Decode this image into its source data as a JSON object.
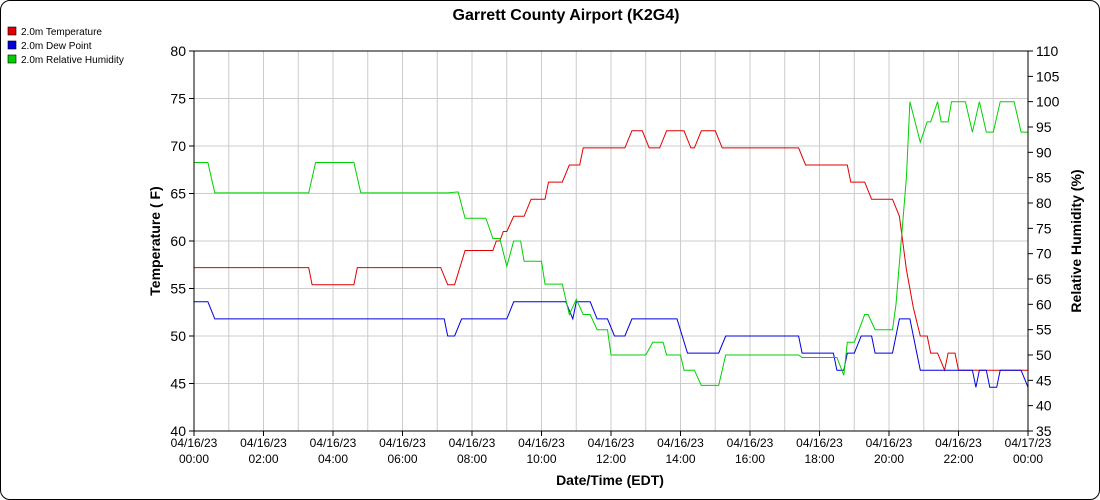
{
  "chart_data": {
    "type": "line",
    "title": "Garrett County Airport (K2G4)",
    "xlabel": "Date/Time (EDT)",
    "ylabel_left": "Temperature ( F)",
    "ylabel_right": "Relative Humidity (%)",
    "xlim": [
      0,
      24
    ],
    "ylim_left": [
      40,
      80
    ],
    "ylim_right": [
      35,
      110
    ],
    "y_ticks_left": [
      40,
      45,
      50,
      55,
      60,
      65,
      70,
      75,
      80
    ],
    "y_ticks_right": [
      35,
      40,
      45,
      50,
      55,
      60,
      65,
      70,
      75,
      80,
      85,
      90,
      95,
      100,
      105,
      110
    ],
    "x_ticks": [
      {
        "x": 0,
        "date": "04/16/23",
        "time": "00:00"
      },
      {
        "x": 2,
        "date": "04/16/23",
        "time": "02:00"
      },
      {
        "x": 4,
        "date": "04/16/23",
        "time": "04:00"
      },
      {
        "x": 6,
        "date": "04/16/23",
        "time": "06:00"
      },
      {
        "x": 8,
        "date": "04/16/23",
        "time": "08:00"
      },
      {
        "x": 10,
        "date": "04/16/23",
        "time": "10:00"
      },
      {
        "x": 12,
        "date": "04/16/23",
        "time": "12:00"
      },
      {
        "x": 14,
        "date": "04/16/23",
        "time": "14:00"
      },
      {
        "x": 16,
        "date": "04/16/23",
        "time": "16:00"
      },
      {
        "x": 18,
        "date": "04/16/23",
        "time": "18:00"
      },
      {
        "x": 20,
        "date": "04/16/23",
        "time": "20:00"
      },
      {
        "x": 22,
        "date": "04/16/23",
        "time": "22:00"
      },
      {
        "x": 24,
        "date": "04/17/23",
        "time": "00:00"
      }
    ],
    "grid": true,
    "legend_position": "top-left",
    "series": [
      {
        "name": "2.0m Temperature",
        "color": "#e00000",
        "axis": "left",
        "points": [
          [
            0,
            57.2
          ],
          [
            3.3,
            57.2
          ],
          [
            3.4,
            55.4
          ],
          [
            4.6,
            55.4
          ],
          [
            4.7,
            57.2
          ],
          [
            7.1,
            57.2
          ],
          [
            7.3,
            55.4
          ],
          [
            7.5,
            55.4
          ],
          [
            7.8,
            59
          ],
          [
            8.4,
            59
          ],
          [
            8.6,
            59
          ],
          [
            8.7,
            60
          ],
          [
            8.8,
            60
          ],
          [
            8.9,
            61
          ],
          [
            9.0,
            61
          ],
          [
            9.2,
            62.6
          ],
          [
            9.5,
            62.6
          ],
          [
            9.7,
            64.4
          ],
          [
            10.1,
            64.4
          ],
          [
            10.2,
            66.2
          ],
          [
            10.6,
            66.2
          ],
          [
            10.8,
            68
          ],
          [
            11.1,
            68
          ],
          [
            11.2,
            69.8
          ],
          [
            12.4,
            69.8
          ],
          [
            12.6,
            71.6
          ],
          [
            12.9,
            71.6
          ],
          [
            13.1,
            69.8
          ],
          [
            13.4,
            69.8
          ],
          [
            13.6,
            71.6
          ],
          [
            14.1,
            71.6
          ],
          [
            14.3,
            69.8
          ],
          [
            14.4,
            69.8
          ],
          [
            14.6,
            71.6
          ],
          [
            15.0,
            71.6
          ],
          [
            15.2,
            69.8
          ],
          [
            17.4,
            69.8
          ],
          [
            17.6,
            68
          ],
          [
            18.8,
            68
          ],
          [
            18.9,
            66.2
          ],
          [
            19.3,
            66.2
          ],
          [
            19.5,
            64.4
          ],
          [
            20.1,
            64.4
          ],
          [
            20.3,
            62.6
          ],
          [
            20.5,
            57
          ],
          [
            20.7,
            53
          ],
          [
            20.9,
            50
          ],
          [
            21.1,
            50
          ],
          [
            21.2,
            48.2
          ],
          [
            21.4,
            48.2
          ],
          [
            21.6,
            46.4
          ],
          [
            21.7,
            48.2
          ],
          [
            21.9,
            48.2
          ],
          [
            22.0,
            46.4
          ],
          [
            24,
            46.4
          ]
        ]
      },
      {
        "name": "2.0m Dew Point",
        "color": "#0000e0",
        "axis": "left",
        "points": [
          [
            0,
            53.6
          ],
          [
            0.4,
            53.6
          ],
          [
            0.6,
            51.8
          ],
          [
            7.2,
            51.8
          ],
          [
            7.3,
            50
          ],
          [
            7.5,
            50
          ],
          [
            7.7,
            51.8
          ],
          [
            9.0,
            51.8
          ],
          [
            9.2,
            53.6
          ],
          [
            10.7,
            53.6
          ],
          [
            10.9,
            51.8
          ],
          [
            11.0,
            53.6
          ],
          [
            11.4,
            53.6
          ],
          [
            11.6,
            51.8
          ],
          [
            11.9,
            51.8
          ],
          [
            12.1,
            50
          ],
          [
            12.4,
            50
          ],
          [
            12.6,
            51.8
          ],
          [
            13.9,
            51.8
          ],
          [
            14.2,
            48.2
          ],
          [
            15.1,
            48.2
          ],
          [
            15.3,
            50
          ],
          [
            17.4,
            50
          ],
          [
            17.5,
            48.2
          ],
          [
            18.4,
            48.2
          ],
          [
            18.5,
            46.4
          ],
          [
            18.7,
            46.4
          ],
          [
            18.8,
            48.2
          ],
          [
            19.0,
            48.2
          ],
          [
            19.2,
            50
          ],
          [
            19.5,
            50
          ],
          [
            19.6,
            48.2
          ],
          [
            20.1,
            48.2
          ],
          [
            20.3,
            51.8
          ],
          [
            20.6,
            51.8
          ],
          [
            20.8,
            48.2
          ],
          [
            20.9,
            46.4
          ],
          [
            22.4,
            46.4
          ],
          [
            22.5,
            44.6
          ],
          [
            22.6,
            46.4
          ],
          [
            22.8,
            46.4
          ],
          [
            22.9,
            44.6
          ],
          [
            23.1,
            44.6
          ],
          [
            23.2,
            46.4
          ],
          [
            23.8,
            46.4
          ],
          [
            24,
            44.6
          ]
        ]
      },
      {
        "name": "2.0m Relative Humidity",
        "color": "#00d000",
        "axis": "right",
        "points": [
          [
            0,
            88
          ],
          [
            0.4,
            88
          ],
          [
            0.6,
            82
          ],
          [
            3.3,
            82
          ],
          [
            3.5,
            88
          ],
          [
            4.6,
            88
          ],
          [
            4.8,
            82
          ],
          [
            7.3,
            82
          ],
          [
            7.6,
            82.2
          ],
          [
            7.8,
            77
          ],
          [
            8.4,
            77
          ],
          [
            8.6,
            73
          ],
          [
            8.8,
            73
          ],
          [
            9.0,
            67.5
          ],
          [
            9.2,
            72.5
          ],
          [
            9.4,
            72.5
          ],
          [
            9.5,
            68.5
          ],
          [
            10.0,
            68.5
          ],
          [
            10.1,
            64
          ],
          [
            10.6,
            64
          ],
          [
            10.8,
            58
          ],
          [
            11.0,
            61
          ],
          [
            11.2,
            58
          ],
          [
            11.4,
            58
          ],
          [
            11.6,
            55
          ],
          [
            11.9,
            55
          ],
          [
            12.0,
            50
          ],
          [
            12.4,
            50
          ],
          [
            12.5,
            50
          ],
          [
            13.0,
            50
          ],
          [
            13.2,
            52.5
          ],
          [
            13.5,
            52.5
          ],
          [
            13.6,
            50
          ],
          [
            14.0,
            50
          ],
          [
            14.1,
            47
          ],
          [
            14.4,
            47
          ],
          [
            14.6,
            44
          ],
          [
            15.1,
            44
          ],
          [
            15.3,
            50
          ],
          [
            17.4,
            50
          ],
          [
            17.5,
            49.5
          ],
          [
            18.5,
            49.5
          ],
          [
            18.7,
            46
          ],
          [
            18.8,
            52.5
          ],
          [
            19.0,
            52.5
          ],
          [
            19.3,
            58
          ],
          [
            19.4,
            58
          ],
          [
            19.6,
            55
          ],
          [
            20.1,
            55
          ],
          [
            20.2,
            60
          ],
          [
            20.5,
            85
          ],
          [
            20.6,
            100
          ],
          [
            20.9,
            92
          ],
          [
            21.1,
            96
          ],
          [
            21.2,
            96
          ],
          [
            21.4,
            100
          ],
          [
            21.5,
            96
          ],
          [
            21.7,
            96
          ],
          [
            21.8,
            100
          ],
          [
            22.2,
            100
          ],
          [
            22.4,
            94
          ],
          [
            22.6,
            100
          ],
          [
            22.8,
            94
          ],
          [
            23.0,
            94
          ],
          [
            23.2,
            100
          ],
          [
            23.6,
            100
          ],
          [
            23.8,
            94
          ],
          [
            24,
            94
          ]
        ]
      }
    ]
  }
}
